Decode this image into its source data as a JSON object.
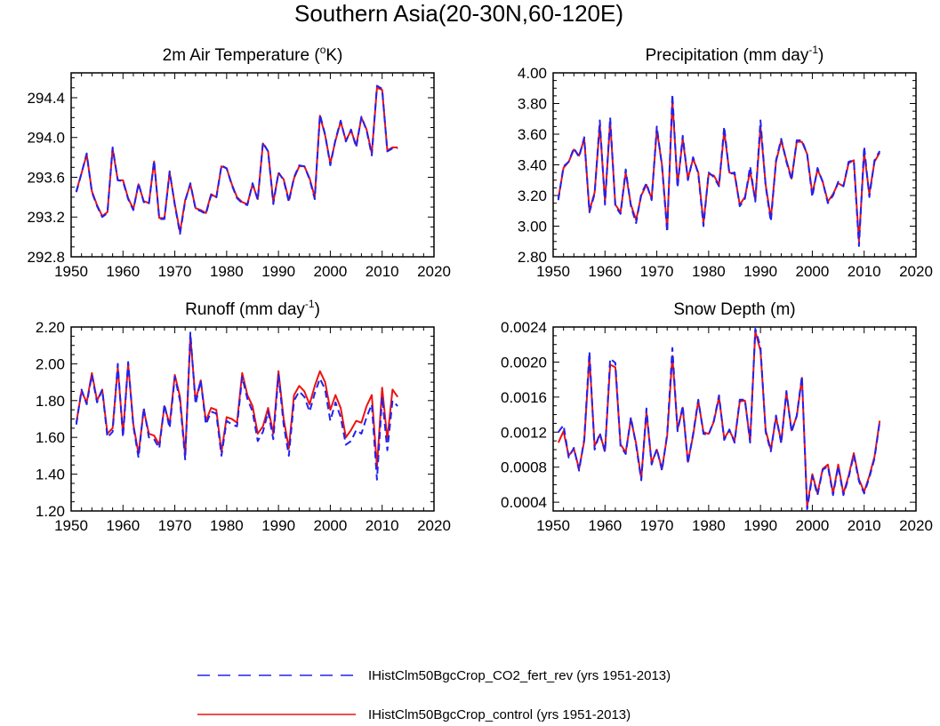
{
  "figure": {
    "title": "Southern Asia(20-30N,60-120E)"
  },
  "legend": {
    "entries": [
      {
        "label": "IHistClm50BgcCrop_CO2_fert_rev (yrs 1951-2013)",
        "color": "#2222ee",
        "style": "dashed"
      },
      {
        "label": "IHistClm50BgcCrop_control (yrs 1951-2013)",
        "color": "#ee1111",
        "style": "solid"
      }
    ]
  },
  "chart_data": [
    {
      "type": "line",
      "title": "2m Air Temperature (°K)",
      "title_base": "2m Air Temperature (",
      "title_sup": "o",
      "title_end": "K)",
      "xlim": [
        1950,
        2020
      ],
      "xticks": [
        1950,
        1960,
        1970,
        1980,
        1990,
        2000,
        2010,
        2020
      ],
      "ylim": [
        292.8,
        294.65
      ],
      "yticks": [
        292.8,
        293.2,
        293.6,
        294.0,
        294.4
      ],
      "ytick_labels": [
        "292.8",
        "293.2",
        "293.6",
        "294.0",
        "294.4"
      ],
      "x_start": 1951,
      "series": [
        {
          "name": "IHistClm50BgcCrop_control (yrs 1951-2013)",
          "color": "#ee1111",
          "values": [
            293.46,
            293.64,
            293.83,
            293.46,
            293.32,
            293.21,
            293.25,
            293.89,
            293.57,
            293.57,
            293.39,
            293.28,
            293.53,
            293.36,
            293.34,
            293.76,
            293.19,
            293.19,
            293.65,
            293.33,
            293.05,
            293.37,
            293.53,
            293.29,
            293.27,
            293.24,
            293.43,
            293.4,
            293.71,
            293.69,
            293.53,
            293.4,
            293.35,
            293.33,
            293.53,
            293.38,
            293.94,
            293.86,
            293.35,
            293.64,
            293.58,
            293.37,
            293.59,
            293.71,
            293.71,
            293.59,
            293.4,
            294.22,
            294.02,
            293.74,
            293.97,
            294.16,
            293.97,
            294.07,
            293.92,
            294.2,
            294.08,
            293.84,
            294.5,
            294.48,
            293.87,
            293.9,
            293.9
          ]
        },
        {
          "name": "IHistClm50BgcCrop_CO2_fert_rev (yrs 1951-2013)",
          "color": "#2222ee",
          "values": [
            293.45,
            293.64,
            293.84,
            293.45,
            293.31,
            293.2,
            293.24,
            293.9,
            293.57,
            293.56,
            293.38,
            293.27,
            293.54,
            293.35,
            293.33,
            293.77,
            293.18,
            293.18,
            293.66,
            293.32,
            293.03,
            293.36,
            293.54,
            293.28,
            293.26,
            293.23,
            293.42,
            293.39,
            293.72,
            293.69,
            293.52,
            293.39,
            293.34,
            293.32,
            293.54,
            293.37,
            293.95,
            293.86,
            293.33,
            293.65,
            293.57,
            293.35,
            293.6,
            293.72,
            293.71,
            293.58,
            293.38,
            294.23,
            294.03,
            293.72,
            293.98,
            294.17,
            293.96,
            294.08,
            293.9,
            294.21,
            294.07,
            293.82,
            294.52,
            294.49,
            293.86,
            293.89,
            293.89
          ]
        }
      ]
    },
    {
      "type": "line",
      "title": "Precipitation (mm day-1)",
      "title_base": "Precipitation (mm day",
      "title_sup": "-1",
      "title_end": ")",
      "xlim": [
        1950,
        2020
      ],
      "xticks": [
        1950,
        1960,
        1970,
        1980,
        1990,
        2000,
        2010,
        2020
      ],
      "ylim": [
        2.8,
        4.0
      ],
      "yticks": [
        2.8,
        3.0,
        3.2,
        3.4,
        3.6,
        3.8,
        4.0
      ],
      "ytick_labels": [
        "2.80",
        "3.00",
        "3.20",
        "3.40",
        "3.60",
        "3.80",
        "4.00"
      ],
      "x_start": 1951,
      "series": [
        {
          "name": "IHistClm50BgcCrop_control (yrs 1951-2013)",
          "color": "#ee1111",
          "values": [
            3.18,
            3.38,
            3.42,
            3.5,
            3.46,
            3.57,
            3.1,
            3.22,
            3.66,
            3.16,
            3.68,
            3.14,
            3.09,
            3.35,
            3.14,
            3.04,
            3.2,
            3.27,
            3.18,
            3.63,
            3.4,
            2.98,
            3.82,
            3.27,
            3.57,
            3.31,
            3.44,
            3.35,
            3.02,
            3.34,
            3.33,
            3.27,
            3.62,
            3.35,
            3.34,
            3.14,
            3.19,
            3.36,
            3.17,
            3.65,
            3.27,
            3.05,
            3.42,
            3.56,
            3.43,
            3.31,
            3.55,
            3.55,
            3.47,
            3.21,
            3.37,
            3.29,
            3.16,
            3.21,
            3.28,
            3.26,
            3.41,
            3.43,
            2.9,
            3.48,
            3.21,
            3.42,
            3.48
          ]
        },
        {
          "name": "IHistClm50BgcCrop_CO2_fert_rev (yrs 1951-2013)",
          "color": "#2222ee",
          "values": [
            3.17,
            3.39,
            3.42,
            3.51,
            3.45,
            3.58,
            3.09,
            3.21,
            3.69,
            3.14,
            3.71,
            3.13,
            3.08,
            3.37,
            3.13,
            3.02,
            3.21,
            3.28,
            3.17,
            3.65,
            3.39,
            2.96,
            3.86,
            3.25,
            3.59,
            3.3,
            3.45,
            3.34,
            3.0,
            3.35,
            3.32,
            3.26,
            3.65,
            3.34,
            3.35,
            3.13,
            3.18,
            3.39,
            3.16,
            3.69,
            3.26,
            3.03,
            3.43,
            3.57,
            3.42,
            3.3,
            3.56,
            3.56,
            3.47,
            3.19,
            3.38,
            3.29,
            3.15,
            3.2,
            3.29,
            3.26,
            3.42,
            3.43,
            2.87,
            3.52,
            3.19,
            3.43,
            3.49
          ]
        }
      ]
    },
    {
      "type": "line",
      "title": "Runoff (mm day-1)",
      "title_base": "Runoff (mm day",
      "title_sup": "-1",
      "title_end": ")",
      "xlim": [
        1950,
        2020
      ],
      "xticks": [
        1950,
        1960,
        1970,
        1980,
        1990,
        2000,
        2010,
        2020
      ],
      "ylim": [
        1.2,
        2.2
      ],
      "yticks": [
        1.2,
        1.4,
        1.6,
        1.8,
        2.0,
        2.2
      ],
      "ytick_labels": [
        "1.20",
        "1.40",
        "1.60",
        "1.80",
        "2.00",
        "2.20"
      ],
      "x_start": 1951,
      "series": [
        {
          "name": "IHistClm50BgcCrop_control (yrs 1951-2013)",
          "color": "#ee1111",
          "values": [
            1.68,
            1.85,
            1.79,
            1.95,
            1.8,
            1.86,
            1.62,
            1.65,
            1.98,
            1.62,
            2.0,
            1.67,
            1.51,
            1.75,
            1.62,
            1.61,
            1.56,
            1.77,
            1.67,
            1.94,
            1.82,
            1.5,
            2.15,
            1.8,
            1.91,
            1.69,
            1.76,
            1.75,
            1.52,
            1.71,
            1.7,
            1.68,
            1.95,
            1.83,
            1.77,
            1.62,
            1.66,
            1.76,
            1.62,
            1.96,
            1.7,
            1.54,
            1.83,
            1.88,
            1.85,
            1.78,
            1.88,
            1.96,
            1.9,
            1.75,
            1.83,
            1.76,
            1.6,
            1.64,
            1.69,
            1.68,
            1.77,
            1.83,
            1.44,
            1.87,
            1.59,
            1.86,
            1.82
          ]
        },
        {
          "name": "IHistClm50BgcCrop_CO2_fert_rev (yrs 1951-2013)",
          "color": "#2222ee",
          "values": [
            1.67,
            1.86,
            1.78,
            1.94,
            1.79,
            1.86,
            1.6,
            1.63,
            2.0,
            1.6,
            2.01,
            1.66,
            1.49,
            1.76,
            1.6,
            1.59,
            1.54,
            1.78,
            1.65,
            1.93,
            1.8,
            1.48,
            2.17,
            1.78,
            1.91,
            1.67,
            1.74,
            1.73,
            1.5,
            1.69,
            1.67,
            1.66,
            1.93,
            1.81,
            1.74,
            1.58,
            1.63,
            1.74,
            1.59,
            1.94,
            1.67,
            1.5,
            1.8,
            1.85,
            1.82,
            1.74,
            1.84,
            1.92,
            1.86,
            1.69,
            1.79,
            1.71,
            1.56,
            1.58,
            1.64,
            1.62,
            1.71,
            1.78,
            1.37,
            1.82,
            1.53,
            1.8,
            1.77
          ]
        }
      ]
    },
    {
      "type": "line",
      "title": "Snow Depth (m)",
      "xlim": [
        1950,
        2020
      ],
      "xticks": [
        1950,
        1960,
        1970,
        1980,
        1990,
        2000,
        2010,
        2020
      ],
      "ylim": [
        0.0003,
        0.0024
      ],
      "yticks": [
        0.0004,
        0.0008,
        0.0012,
        0.0016,
        0.002,
        0.0024
      ],
      "ytick_labels": [
        "0.0004",
        "0.0008",
        "0.0012",
        "0.0016",
        "0.0020",
        "0.0024"
      ],
      "x_start": 1951,
      "series": [
        {
          "name": "IHistClm50BgcCrop_control (yrs 1951-2013)",
          "color": "#ee1111",
          "values": [
            0.00108,
            0.00121,
            0.00093,
            0.00101,
            0.00078,
            0.0011,
            0.00206,
            0.00104,
            0.00117,
            0.00099,
            0.00197,
            0.00194,
            0.00106,
            0.00097,
            0.00135,
            0.00107,
            0.00067,
            0.00143,
            0.00085,
            0.001,
            0.00078,
            0.00116,
            0.00207,
            0.00123,
            0.00148,
            0.00086,
            0.00116,
            0.00156,
            0.0012,
            0.00118,
            0.00132,
            0.0016,
            0.00113,
            0.00122,
            0.0011,
            0.00155,
            0.00156,
            0.0011,
            0.00235,
            0.00213,
            0.00122,
            0.001,
            0.00137,
            0.00109,
            0.00165,
            0.00122,
            0.00138,
            0.00182,
            0.00035,
            0.00072,
            0.0005,
            0.00078,
            0.00083,
            0.0005,
            0.00083,
            0.0005,
            0.0007,
            0.00096,
            0.00066,
            0.00052,
            0.0007,
            0.00092,
            0.00133
          ]
        },
        {
          "name": "IHistClm50BgcCrop_CO2_fert_rev (yrs 1951-2013)",
          "color": "#2222ee",
          "values": [
            0.0012,
            0.00128,
            0.00091,
            0.00102,
            0.00076,
            0.00112,
            0.00212,
            0.001,
            0.00119,
            0.00097,
            0.00204,
            0.00199,
            0.00104,
            0.00095,
            0.00137,
            0.00105,
            0.00065,
            0.00147,
            0.00083,
            0.00101,
            0.00076,
            0.00118,
            0.00216,
            0.00121,
            0.0015,
            0.00084,
            0.00118,
            0.00157,
            0.00118,
            0.00117,
            0.00133,
            0.00162,
            0.00111,
            0.00123,
            0.00108,
            0.00157,
            0.00157,
            0.00108,
            0.00238,
            0.00217,
            0.0012,
            0.00098,
            0.00139,
            0.00107,
            0.00167,
            0.0012,
            0.00139,
            0.00184,
            0.00032,
            0.0007,
            0.00048,
            0.00077,
            0.00081,
            0.00048,
            0.00081,
            0.00048,
            0.00068,
            0.00094,
            0.00064,
            0.0005,
            0.00068,
            0.0009,
            0.00132
          ]
        }
      ]
    }
  ]
}
